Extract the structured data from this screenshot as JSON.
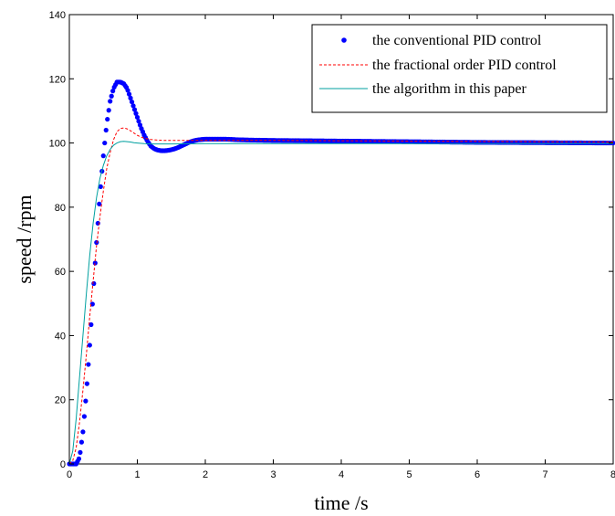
{
  "chart_data": {
    "type": "line",
    "xlabel": "time /s",
    "ylabel": "speed /rpm",
    "xlim": [
      0,
      8
    ],
    "ylim": [
      0,
      140
    ],
    "xticks": [
      0,
      1,
      2,
      3,
      4,
      5,
      6,
      7,
      8
    ],
    "xtick_labels": [
      "0",
      "1",
      "2",
      "3",
      "4",
      "5",
      "6",
      "7",
      "8"
    ],
    "yticks": [
      0,
      20,
      40,
      60,
      80,
      100,
      120,
      140
    ],
    "ytick_labels": [
      "0",
      "20",
      "40",
      "60",
      "80",
      "100",
      "120",
      "140"
    ],
    "grid": false,
    "legend_position": "top-right",
    "series": [
      {
        "name": "the conventional PID control",
        "color": "#0000ff",
        "style": "dots",
        "x": [
          0,
          0.1,
          0.15,
          0.2,
          0.25,
          0.3,
          0.35,
          0.4,
          0.45,
          0.5,
          0.55,
          0.6,
          0.65,
          0.7,
          0.75,
          0.8,
          0.85,
          0.9,
          0.95,
          1.0,
          1.05,
          1.1,
          1.15,
          1.2,
          1.25,
          1.3,
          1.35,
          1.4,
          1.45,
          1.5,
          1.55,
          1.6,
          1.65,
          1.7,
          1.75,
          1.8,
          1.85,
          1.9,
          1.95,
          2.0,
          2.1,
          2.2,
          2.3,
          2.4,
          2.5,
          2.7,
          3.0,
          3.5,
          4.0,
          5.0,
          6.0,
          7.0,
          8.0
        ],
        "y": [
          0,
          0,
          2,
          10,
          22,
          37,
          53,
          69,
          84,
          96,
          106,
          113,
          117,
          119,
          119,
          118.5,
          117,
          114,
          111,
          108,
          105,
          102.5,
          100.5,
          99,
          98.2,
          97.8,
          97.6,
          97.6,
          97.7,
          97.9,
          98.2,
          98.6,
          99.1,
          99.6,
          100.1,
          100.5,
          100.8,
          101,
          101.1,
          101.2,
          101.2,
          101.2,
          101.2,
          101.1,
          101,
          100.9,
          100.8,
          100.7,
          100.6,
          100.4,
          100.2,
          100.1,
          100
        ]
      },
      {
        "name": "the fractional order PID control",
        "color": "#ff0000",
        "style": "dashed",
        "x": [
          0,
          0.05,
          0.1,
          0.15,
          0.2,
          0.25,
          0.3,
          0.35,
          0.4,
          0.45,
          0.5,
          0.55,
          0.6,
          0.65,
          0.7,
          0.75,
          0.8,
          0.85,
          0.9,
          0.95,
          1.0,
          1.05,
          1.1,
          1.2,
          1.3,
          1.4,
          1.5,
          1.6,
          1.8,
          2.0,
          2.5,
          3.0,
          4.0,
          5.0,
          6.0,
          7.0,
          8.0
        ],
        "y": [
          0,
          1,
          5,
          13,
          23,
          34,
          46,
          57,
          68,
          77,
          85,
          92,
          97,
          101,
          103.5,
          104.5,
          104.7,
          104.4,
          103.8,
          103.1,
          102.4,
          101.9,
          101.5,
          101.1,
          100.9,
          100.8,
          100.8,
          100.8,
          100.8,
          100.8,
          100.8,
          100.8,
          100.7,
          100.6,
          100.5,
          100.4,
          100.3
        ]
      },
      {
        "name": "the algorithm in this paper",
        "color": "#00a0a0",
        "style": "solid",
        "x": [
          0,
          0.05,
          0.1,
          0.15,
          0.2,
          0.25,
          0.3,
          0.35,
          0.4,
          0.45,
          0.5,
          0.55,
          0.6,
          0.65,
          0.7,
          0.75,
          0.8,
          0.85,
          0.9,
          0.95,
          1.0,
          1.1,
          1.2,
          1.3,
          1.5,
          2.0,
          3.0,
          4.0,
          5.0,
          6.0,
          7.0,
          8.0
        ],
        "y": [
          0,
          4,
          14,
          27,
          40,
          53,
          65,
          75,
          83,
          89,
          93,
          96,
          98,
          99.3,
          100,
          100.4,
          100.5,
          100.4,
          100.3,
          100.1,
          100,
          99.8,
          99.7,
          99.7,
          99.7,
          99.8,
          99.8,
          99.8,
          99.8,
          99.8,
          99.8,
          99.8
        ]
      }
    ]
  }
}
